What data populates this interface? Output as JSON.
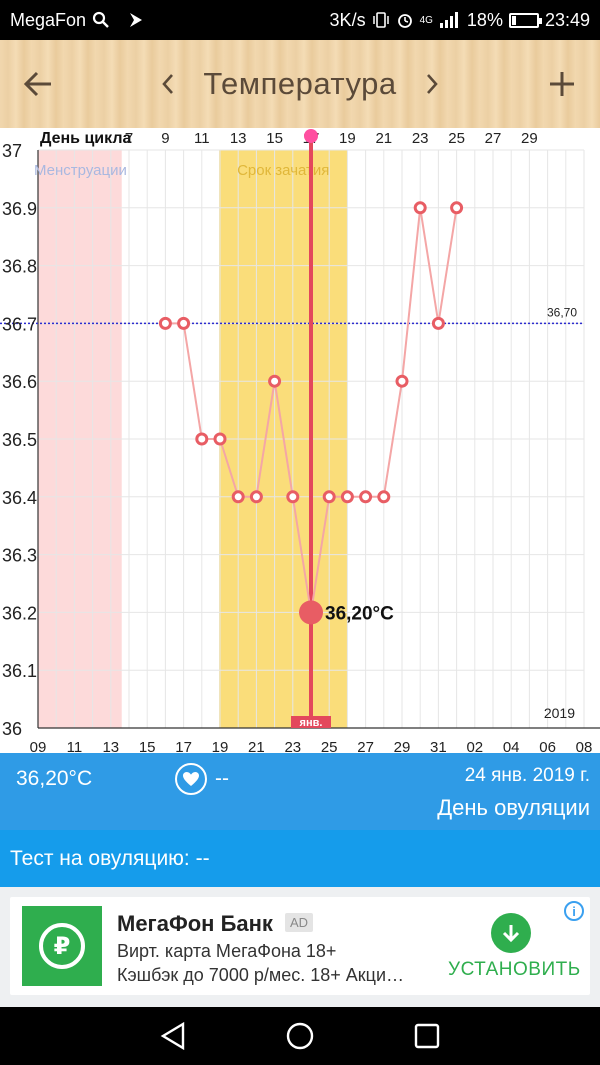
{
  "status_bar": {
    "carrier": "MegaFon",
    "speed": "3K/s",
    "battery": "18%",
    "battery_level": 0.18,
    "time": "23:49",
    "network": "4G"
  },
  "toolbar": {
    "title": "Температура",
    "back_icon": "arrow-left-icon",
    "add_icon": "plus-icon"
  },
  "chart_data": {
    "type": "line",
    "cycle_label": "День цикла",
    "cycle_ticks": [
      "7",
      "9",
      "11",
      "13",
      "15",
      "17",
      "19",
      "21",
      "23",
      "25",
      "27",
      "29"
    ],
    "date_ticks": [
      "09",
      "11",
      "13",
      "15",
      "17",
      "19",
      "21",
      "23",
      "25",
      "27",
      "29",
      "31",
      "02",
      "04",
      "06",
      "08"
    ],
    "ylim": [
      36,
      37
    ],
    "y_ticks": [
      "37",
      "36.9",
      "36.8",
      "36.7",
      "36.6",
      "36.5",
      "36.4",
      "36.3",
      "36.2",
      "36.1",
      "36"
    ],
    "x": [
      "2019-01-16",
      "2019-01-17",
      "2019-01-18",
      "2019-01-19",
      "2019-01-20",
      "2019-01-21",
      "2019-01-22",
      "2019-01-23",
      "2019-01-24",
      "2019-01-25",
      "2019-01-26",
      "2019-01-27",
      "2019-01-28",
      "2019-01-29",
      "2019-01-30",
      "2019-01-31",
      "2019-02-01"
    ],
    "values": [
      36.7,
      36.7,
      36.5,
      36.5,
      36.4,
      36.4,
      36.6,
      36.4,
      36.2,
      36.4,
      36.4,
      36.4,
      36.4,
      36.6,
      36.9,
      36.7,
      36.9
    ],
    "selected_value": "36,20°C",
    "selected_date": "2019-01-24",
    "coverline_label": "36,70",
    "coverline_value": 36.7,
    "menstruation_label": "Менструации",
    "menstruation_range": [
      "2019-01-09",
      "2019-01-13"
    ],
    "fertile_label": "Срок зачатия",
    "fertile_range": [
      "2019-01-19",
      "2019-01-25"
    ],
    "month_label": "янв.",
    "year_label": "2019",
    "colors": {
      "line": "#f4a6a6",
      "point": "#e85d64",
      "fertile": "#fadd7a",
      "menstruation": "#fddada",
      "ovulation_line": "#e3485c",
      "coverline": "#2c2ccf"
    }
  },
  "info": {
    "temp": "36,20°C",
    "heart_value": "--",
    "date": "24 янв. 2019 г.",
    "day_type": "День овуляции"
  },
  "test": {
    "label": "Тест на овуляцию: --"
  },
  "ad": {
    "title": "МегаФон Банк",
    "badge": "AD",
    "line1": "Вирт. карта МегаФона 18+",
    "line2": "Кэшбэк до 7000 р/мес. 18+ Акци…",
    "install_label": "УСТАНОВИТЬ",
    "logo_symbol": "₽"
  }
}
